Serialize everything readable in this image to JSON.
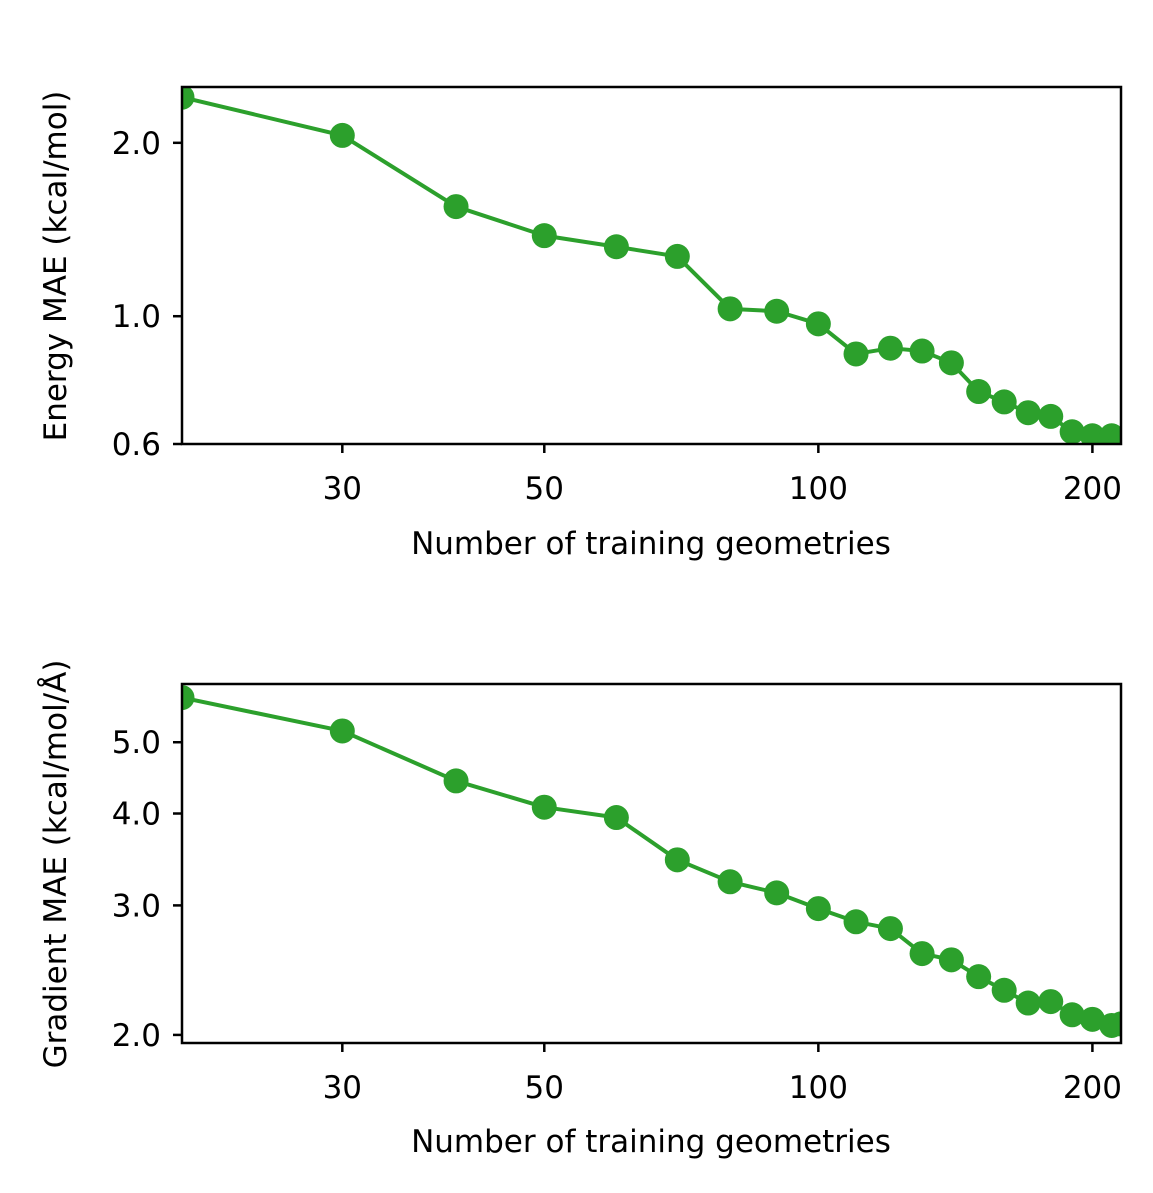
{
  "chart_data": [
    {
      "type": "line",
      "xscale": "log",
      "yscale": "log",
      "xlabel": "Number of training geometries",
      "ylabel": "Energy MAE (kcal/mol)",
      "xlim": [
        20,
        215
      ],
      "ylim": [
        0.6,
        2.5
      ],
      "xticks": [
        {
          "value": 30,
          "label": "30"
        },
        {
          "value": 50,
          "label": "50"
        },
        {
          "value": 100,
          "label": "100"
        },
        {
          "value": 200,
          "label": "200"
        }
      ],
      "yticks": [
        {
          "value": 0.6,
          "label": "0.6"
        },
        {
          "value": 1.0,
          "label": "1.0"
        },
        {
          "value": 2.0,
          "label": "2.0"
        }
      ],
      "series": [
        {
          "name": "Energy MAE",
          "color": "#2ca02c",
          "x": [
            20,
            30,
            40,
            50,
            60,
            70,
            80,
            90,
            100,
            110,
            120,
            130,
            140,
            150,
            160,
            170,
            180,
            190,
            200,
            210,
            215
          ],
          "y": [
            2.4,
            2.06,
            1.55,
            1.38,
            1.32,
            1.27,
            1.03,
            1.02,
            0.97,
            0.86,
            0.88,
            0.87,
            0.83,
            0.74,
            0.71,
            0.68,
            0.67,
            0.63,
            0.62,
            0.62,
            0.61
          ]
        }
      ]
    },
    {
      "type": "line",
      "xscale": "log",
      "yscale": "log",
      "xlabel": "Number of training geometries",
      "ylabel": "Gradient MAE (kcal/mol/Å)",
      "xlim": [
        20,
        215
      ],
      "ylim": [
        1.95,
        6.0
      ],
      "xticks": [
        {
          "value": 30,
          "label": "30"
        },
        {
          "value": 50,
          "label": "50"
        },
        {
          "value": 100,
          "label": "100"
        },
        {
          "value": 200,
          "label": "200"
        }
      ],
      "yticks": [
        {
          "value": 2.0,
          "label": "2.0"
        },
        {
          "value": 3.0,
          "label": "3.0"
        },
        {
          "value": 4.0,
          "label": "4.0"
        },
        {
          "value": 5.0,
          "label": "5.0"
        }
      ],
      "series": [
        {
          "name": "Gradient MAE",
          "color": "#2ca02c",
          "x": [
            20,
            30,
            40,
            50,
            60,
            70,
            80,
            90,
            100,
            110,
            120,
            130,
            140,
            150,
            160,
            170,
            180,
            190,
            200,
            210,
            215
          ],
          "y": [
            5.75,
            5.18,
            4.43,
            4.08,
            3.95,
            3.46,
            3.23,
            3.12,
            2.97,
            2.85,
            2.79,
            2.58,
            2.53,
            2.4,
            2.3,
            2.21,
            2.22,
            2.13,
            2.1,
            2.06,
            2.07
          ]
        }
      ]
    }
  ]
}
